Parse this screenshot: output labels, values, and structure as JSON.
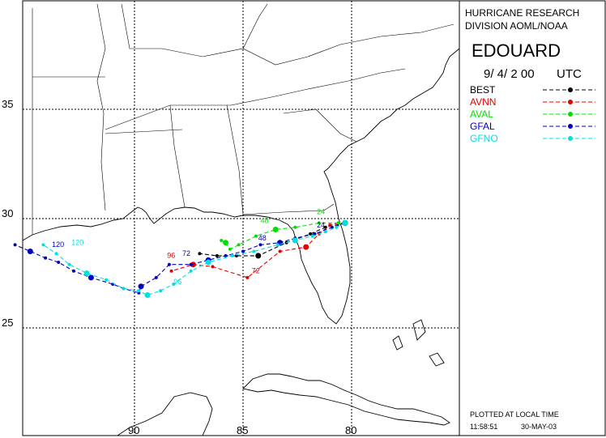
{
  "header": {
    "org_line1": "HURRICANE RESEARCH",
    "org_line2": "DIVISION AOML/NOAA",
    "storm_name": "EDOUARD",
    "date_time": "9/ 4/ 2 00",
    "time_zone": "UTC"
  },
  "legend": [
    {
      "label": "BEST",
      "color": "#000000"
    },
    {
      "label": "AVNN",
      "color": "#e00000"
    },
    {
      "label": "AVAL",
      "color": "#00e000"
    },
    {
      "label": "GFAL",
      "color": "#0000c0"
    },
    {
      "label": "GFNO",
      "color": "#00e0e0"
    }
  ],
  "footer": {
    "note": "PLOTTED AT LOCAL TIME",
    "time": "11:58:51",
    "date": "30-MAY-03"
  },
  "axes": {
    "lat_ticks": [
      {
        "lat": 35,
        "label": "35"
      },
      {
        "lat": 30,
        "label": "30"
      },
      {
        "lat": 25,
        "label": "25"
      }
    ],
    "lon_ticks": [
      {
        "lon": -90,
        "label": "90"
      },
      {
        "lon": -85,
        "label": "85"
      },
      {
        "lon": -80,
        "label": "80"
      }
    ]
  },
  "tracks": [
    {
      "model": "BEST",
      "color": "#000000",
      "points": [
        [
          -80.3,
          29.8
        ],
        [
          -81.2,
          29.6
        ],
        [
          -81.9,
          29.3
        ],
        [
          -83.0,
          28.9
        ],
        [
          -84.3,
          28.3
        ],
        [
          -85.3,
          28.3
        ],
        [
          -86.2,
          28.3
        ],
        [
          -87.0,
          28.4
        ]
      ]
    },
    {
      "model": "AVNN",
      "color": "#e00000",
      "points": [
        [
          -80.3,
          29.8
        ],
        [
          -80.6,
          29.8
        ],
        [
          -81.0,
          29.7
        ],
        [
          -81.5,
          29.3
        ],
        [
          -82.1,
          28.7
        ],
        [
          -83.3,
          28.5
        ],
        [
          -84.8,
          27.3
        ],
        [
          -86.4,
          27.8
        ],
        [
          -87.3,
          27.9
        ],
        [
          -88.3,
          27.6
        ]
      ],
      "labels": [
        {
          "text": "72",
          "lon": -84.6,
          "lat": 27.5
        },
        {
          "text": "96",
          "lon": -88.5,
          "lat": 28.2
        }
      ]
    },
    {
      "model": "AVAL",
      "color": "#00e000",
      "points": [
        [
          -80.3,
          29.8
        ],
        [
          -80.6,
          29.8
        ],
        [
          -81.5,
          29.8
        ],
        [
          -82.6,
          29.6
        ],
        [
          -83.5,
          29.5
        ],
        [
          -84.4,
          29.2
        ],
        [
          -85.2,
          28.8
        ],
        [
          -85.6,
          28.6
        ],
        [
          -85.8,
          28.9
        ],
        [
          -86.0,
          29.0
        ]
      ],
      "labels": [
        {
          "text": "24",
          "lon": -81.6,
          "lat": 30.2
        },
        {
          "text": "48",
          "lon": -84.2,
          "lat": 29.8
        }
      ]
    },
    {
      "model": "GFAL",
      "color": "#0000c0",
      "points": [
        [
          -80.3,
          29.8
        ],
        [
          -80.9,
          29.6
        ],
        [
          -81.7,
          29.3
        ],
        [
          -82.6,
          29.1
        ],
        [
          -83.3,
          28.9
        ],
        [
          -84.2,
          28.8
        ],
        [
          -85.0,
          28.5
        ],
        [
          -85.8,
          28.3
        ],
        [
          -86.6,
          28.1
        ],
        [
          -87.4,
          27.9
        ],
        [
          -88.4,
          27.9
        ],
        [
          -89.0,
          27.3
        ],
        [
          -89.7,
          26.9
        ],
        [
          -89.8,
          26.6
        ],
        [
          -90.5,
          26.8
        ],
        [
          -91.0,
          27.0
        ],
        [
          -92.0,
          27.3
        ],
        [
          -92.8,
          27.6
        ],
        [
          -93.5,
          28.0
        ],
        [
          -94.1,
          28.2
        ],
        [
          -94.8,
          28.5
        ],
        [
          -95.5,
          28.8
        ]
      ],
      "labels": [
        {
          "text": "24",
          "lon": -81.6,
          "lat": 29.6
        },
        {
          "text": "48",
          "lon": -84.3,
          "lat": 29.0
        },
        {
          "text": "72",
          "lon": -87.8,
          "lat": 28.3
        },
        {
          "text": "120",
          "lon": -93.8,
          "lat": 28.7
        }
      ]
    },
    {
      "model": "GFNO",
      "color": "#00e0e0",
      "points": [
        [
          -80.3,
          29.8
        ],
        [
          -80.7,
          29.6
        ],
        [
          -81.2,
          29.4
        ],
        [
          -81.8,
          29.2
        ],
        [
          -82.6,
          29.0
        ],
        [
          -83.4,
          28.8
        ],
        [
          -84.5,
          28.5
        ],
        [
          -85.5,
          28.3
        ],
        [
          -86.6,
          28.0
        ],
        [
          -87.4,
          27.6
        ],
        [
          -88.2,
          27.0
        ],
        [
          -88.8,
          26.7
        ],
        [
          -89.4,
          26.5
        ],
        [
          -89.8,
          26.7
        ],
        [
          -90.5,
          26.8
        ],
        [
          -91.3,
          27.2
        ],
        [
          -92.2,
          27.5
        ],
        [
          -93.0,
          27.9
        ],
        [
          -93.6,
          28.4
        ],
        [
          -94.2,
          28.8
        ]
      ],
      "labels": [
        {
          "text": "96",
          "lon": -88.2,
          "lat": 27.0
        },
        {
          "text": "120",
          "lon": -92.9,
          "lat": 28.8
        }
      ]
    }
  ]
}
